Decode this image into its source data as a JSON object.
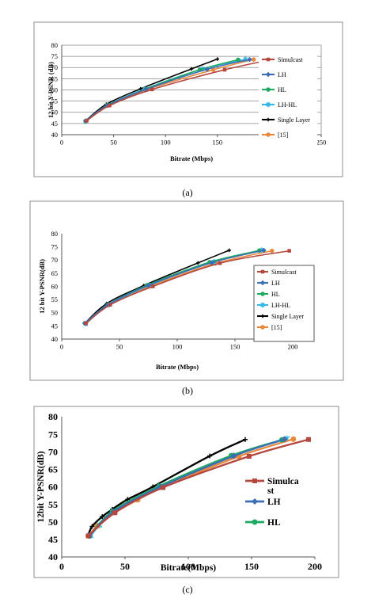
{
  "captions": [
    "(a)",
    "(b)",
    "(c)"
  ],
  "chart_data": [
    {
      "type": "line",
      "xlabel": "Bitrate (Mbps)",
      "ylabel": "12 bit Y-PSNR (dB)",
      "xlim": [
        0,
        250
      ],
      "ylim": [
        40,
        80
      ],
      "xticks": [
        0,
        50,
        100,
        150,
        200,
        250
      ],
      "yticks": [
        40,
        45,
        50,
        55,
        60,
        65,
        70,
        75,
        80
      ],
      "grid": true,
      "legend_position": "right",
      "series": [
        {
          "name": "Simulcast",
          "color": "#b5473f",
          "marker": "square",
          "x": [
            24,
            46,
            87,
            157,
            203
          ],
          "y": [
            46.2,
            53.0,
            60.2,
            69.0,
            73.6
          ]
        },
        {
          "name": "LH",
          "color": "#3c6eb4",
          "marker": "diamond",
          "x": [
            23,
            44,
            81,
            140,
            181
          ],
          "y": [
            46.1,
            53.0,
            60.2,
            69.2,
            73.6
          ]
        },
        {
          "name": "HL",
          "color": "#1faa62",
          "marker": "circle",
          "x": [
            23,
            44,
            81,
            133,
            170
          ],
          "y": [
            46.1,
            53.2,
            60.4,
            69.0,
            73.5
          ]
        },
        {
          "name": "LH-HL",
          "color": "#33b8e6",
          "marker": "x",
          "x": [
            23,
            44,
            80,
            136,
            177
          ],
          "y": [
            46.0,
            53.1,
            60.4,
            69.4,
            73.7
          ]
        },
        {
          "name": "Single Layer",
          "color": "#000000",
          "marker": "plus",
          "x": [
            23,
            43,
            76,
            125,
            150
          ],
          "y": [
            46.2,
            53.6,
            60.5,
            69.4,
            73.8
          ]
        },
        {
          "name": "[15]",
          "color": "#e8883a",
          "marker": "circle",
          "x": [
            24,
            46,
            83,
            146,
            185
          ],
          "y": [
            46.3,
            53.2,
            60.3,
            69.0,
            73.6
          ]
        }
      ]
    },
    {
      "type": "line",
      "xlabel": "Bitrate (Mbps)",
      "ylabel": "12 bit Y-PSNR(dB)",
      "xlim": [
        0,
        200
      ],
      "ylim": [
        40,
        80
      ],
      "xticks": [
        0,
        50,
        100,
        150,
        200
      ],
      "yticks": [
        40,
        45,
        50,
        55,
        60,
        65,
        70,
        75,
        80
      ],
      "grid": false,
      "legend_position": "right",
      "series": [
        {
          "name": "Simulcast",
          "color": "#b5473f",
          "marker": "square",
          "x": [
            21,
            42,
            79,
            137,
            197
          ],
          "y": [
            46.0,
            53.0,
            60.0,
            68.8,
            73.5
          ]
        },
        {
          "name": "LH",
          "color": "#3c6eb4",
          "marker": "diamond",
          "x": [
            20,
            40,
            75,
            130,
            175
          ],
          "y": [
            46.0,
            53.0,
            60.4,
            69.0,
            73.7
          ]
        },
        {
          "name": "HL",
          "color": "#1faa62",
          "marker": "circle",
          "x": [
            20,
            40,
            74,
            128,
            171
          ],
          "y": [
            46.0,
            53.1,
            60.5,
            69.2,
            73.6
          ]
        },
        {
          "name": "LH-HL",
          "color": "#33b8e6",
          "marker": "x",
          "x": [
            21,
            41,
            76,
            132,
            173
          ],
          "y": [
            45.8,
            53.0,
            60.4,
            69.4,
            73.8
          ]
        },
        {
          "name": "Single Layer",
          "color": "#000000",
          "marker": "plus",
          "x": [
            20,
            39,
            71,
            118,
            145
          ],
          "y": [
            46.0,
            53.5,
            60.3,
            68.9,
            73.7
          ]
        },
        {
          "name": "[15]",
          "color": "#e8883a",
          "marker": "circle",
          "x": [
            21,
            41,
            77,
            133,
            182
          ],
          "y": [
            46.0,
            53.0,
            60.1,
            68.7,
            73.5
          ]
        }
      ]
    },
    {
      "type": "line",
      "xlabel": "Bitrate(Mbps)",
      "ylabel": "12bit Y-PSNR(dB)",
      "xlim": [
        0,
        200
      ],
      "ylim": [
        40,
        80
      ],
      "xticks": [
        0,
        50,
        100,
        150,
        200
      ],
      "yticks": [
        40,
        45,
        50,
        55,
        60,
        65,
        70,
        75,
        80
      ],
      "grid": false,
      "legend_position": "right",
      "series": [
        {
          "name": "Simulcast",
          "color": "#b5473f",
          "marker": "square",
          "x": [
            21,
            42,
            80,
            148,
            195
          ],
          "y": [
            46.0,
            52.6,
            59.8,
            68.7,
            73.5
          ]
        },
        {
          "name": "LH",
          "color": "#3c6eb4",
          "marker": "diamond",
          "x": [
            22,
            41,
            78,
            136,
            176
          ],
          "y": [
            46.1,
            52.9,
            60.0,
            68.8,
            73.6
          ]
        },
        {
          "name": "HL",
          "color": "#1faa62",
          "marker": "circle",
          "x": [
            22,
            40,
            77,
            134,
            174
          ],
          "y": [
            46.0,
            53.0,
            60.2,
            68.9,
            73.4
          ]
        }
      ],
      "extra_series": [
        {
          "color": "#33b8e6",
          "marker": "x",
          "x": [
            23,
            30,
            42,
            60,
            80,
            136,
            178
          ],
          "y": [
            46.1,
            49.1,
            52.8,
            56.6,
            60.0,
            68.9,
            73.7
          ]
        },
        {
          "color": "#000000",
          "marker": "plus",
          "x": [
            21,
            24,
            32,
            40,
            52,
            72,
            117,
            145
          ],
          "y": [
            46.2,
            48.7,
            51.5,
            53.6,
            56.4,
            60.0,
            68.8,
            73.5
          ]
        },
        {
          "color": "#e8883a",
          "marker": "circle",
          "x": [
            21,
            28,
            42,
            60,
            80,
            140,
            183
          ],
          "y": [
            46.0,
            48.8,
            52.7,
            56.3,
            59.9,
            68.7,
            73.6
          ]
        }
      ],
      "legend_labels": [
        "Simulca\nst",
        "LH",
        "HL"
      ]
    }
  ]
}
